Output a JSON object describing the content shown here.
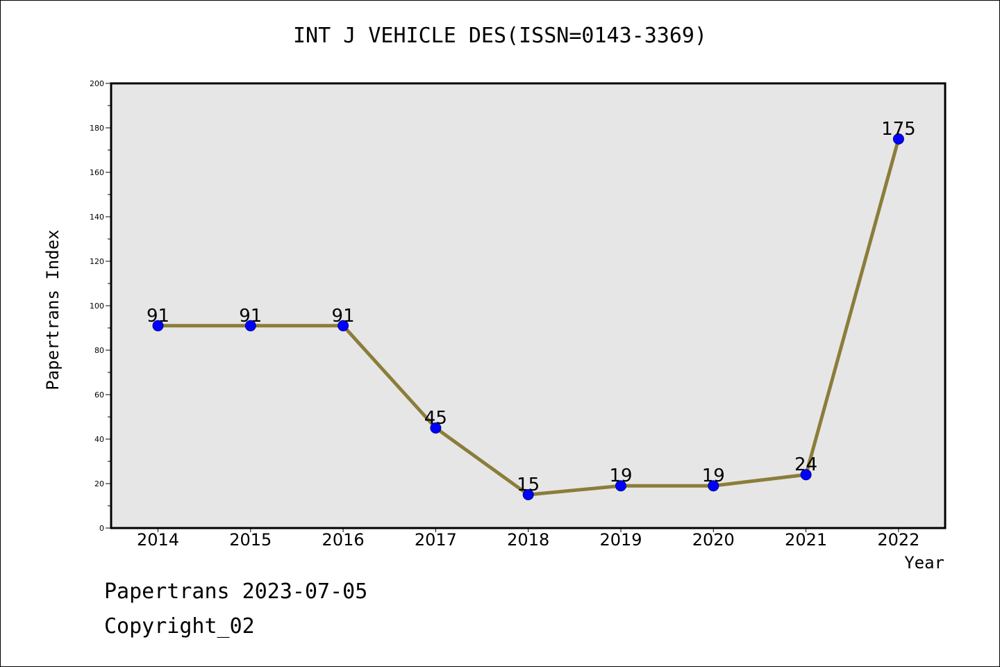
{
  "chart_data": {
    "type": "line",
    "title": "INT J VEHICLE DES(ISSN=0143-3369)",
    "xlabel": "Year",
    "ylabel": "Papertrans Index",
    "categories": [
      "2014",
      "2015",
      "2016",
      "2017",
      "2018",
      "2019",
      "2020",
      "2021",
      "2022"
    ],
    "series": [
      {
        "values": [
          91,
          91,
          91,
          45,
          15,
          19,
          19,
          24,
          175
        ]
      }
    ],
    "data_labels": [
      "91",
      "91",
      "91",
      "45",
      "15",
      "19",
      "19",
      "24",
      "175"
    ],
    "ylim": [
      0,
      200
    ],
    "yticks": [
      0,
      20,
      40,
      60,
      80,
      100,
      120,
      140,
      160,
      180,
      200
    ],
    "grid": false,
    "line_color": "#8b7d3a",
    "marker_color": "#0000ff",
    "plot_background": "#e6e6e6"
  },
  "footer": {
    "line1": "Papertrans 2023-07-05",
    "line2": "Copyright_02"
  }
}
